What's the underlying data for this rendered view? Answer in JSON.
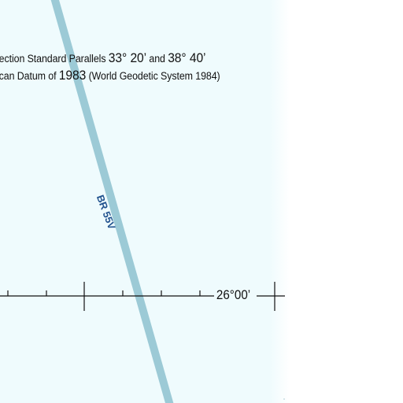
{
  "map": {
    "colors": {
      "background": "#effbfd",
      "margin": "#ffffff",
      "route": "#9ccad6",
      "route_label": "#22538f",
      "lines": "#111111"
    },
    "notes": {
      "line1_part1": "jection Standard Parallels ",
      "line1_part2": "33° 20’",
      "line1_part3": " and ",
      "line1_part4": "38° 40’",
      "line2_part1": "ican Datum of ",
      "line2_part2": "1983",
      "line2_part3": " (World Geodetic System 1984)"
    },
    "route": {
      "label": "BR 55V"
    },
    "graticule": {
      "latitude_label": "26°00’"
    }
  }
}
